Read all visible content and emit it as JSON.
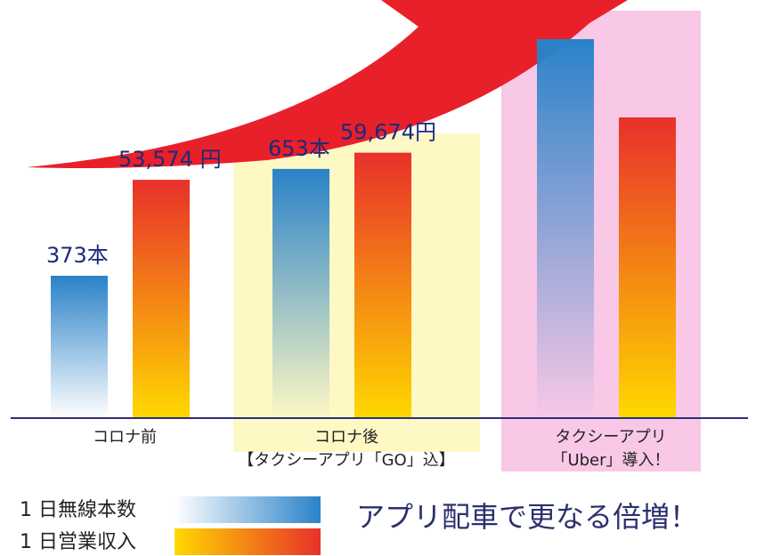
{
  "chart_data": {
    "type": "bar",
    "categories": [
      [
        "コロナ前"
      ],
      [
        "コロナ後",
        "【タクシーアプリ「GO」込】"
      ],
      [
        "タクシーアプリ",
        "「Uber」導入！"
      ]
    ],
    "series": [
      {
        "name": "1 日無線本数",
        "color": "#2a82c8",
        "values": [
          373,
          653,
          993
        ],
        "value_labels": [
          "373本",
          "653本",
          null
        ]
      },
      {
        "name": "1 日営業収入",
        "color": "#e8302a",
        "values": [
          53574,
          59674,
          67600
        ],
        "value_labels": [
          "53,574 円",
          "59,674円",
          null
        ]
      }
    ],
    "annotation": "アプリ配車で更なる倍増！"
  }
}
